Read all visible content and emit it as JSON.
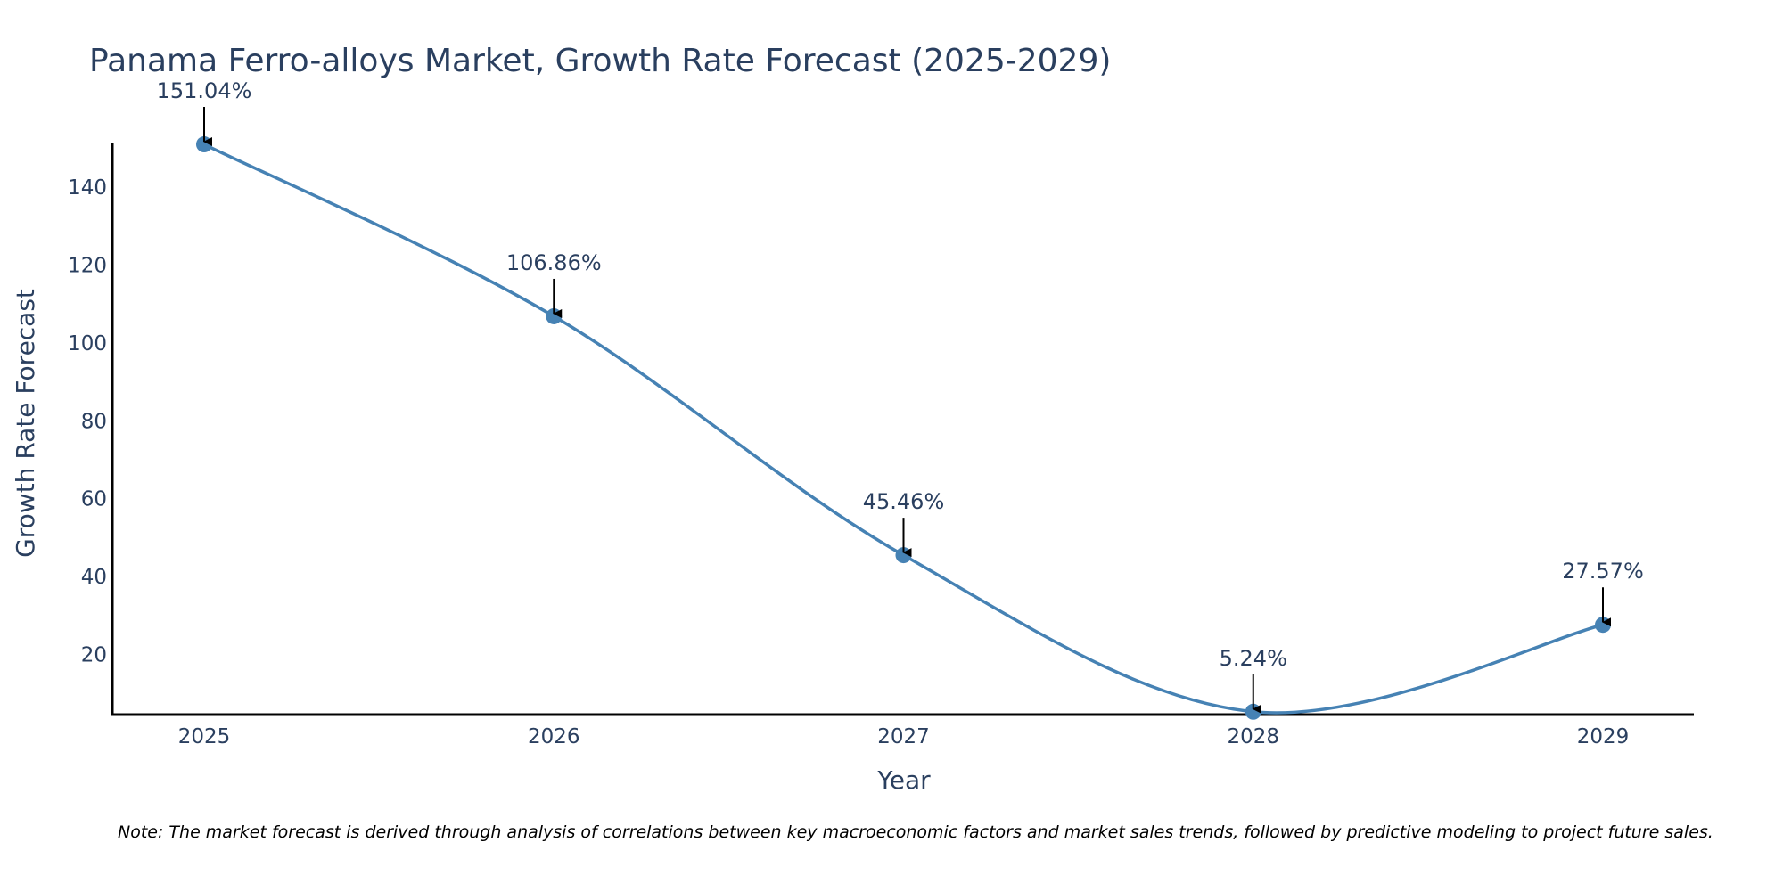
{
  "colors": {
    "line": "#4682b4",
    "marker": "#4682b4",
    "axis": "#000000",
    "text": "#2a3f5f",
    "arrow": "#000000"
  },
  "chart_data": {
    "type": "line",
    "title": "Panama Ferro-alloys Market, Growth Rate Forecast (2025-2029)",
    "xlabel": "Year",
    "ylabel": "Growth Rate Forecast",
    "categories": [
      "2025",
      "2026",
      "2027",
      "2028",
      "2029"
    ],
    "series": [
      {
        "name": "Growth Rate Forecast",
        "values": [
          151.04,
          106.86,
          45.46,
          5.24,
          27.57
        ],
        "labels": [
          "151.04%",
          "106.86%",
          "45.46%",
          "5.24%",
          "27.57%"
        ]
      }
    ],
    "ylim": [
      4.5,
      151.5
    ],
    "yticks": [
      20,
      40,
      60,
      80,
      100,
      120,
      140
    ],
    "grid": false,
    "line_shape": "spline"
  },
  "note": "Note: The market forecast is derived through analysis of correlations between key macroeconomic factors and market sales trends, followed by predictive modeling to project future sales."
}
